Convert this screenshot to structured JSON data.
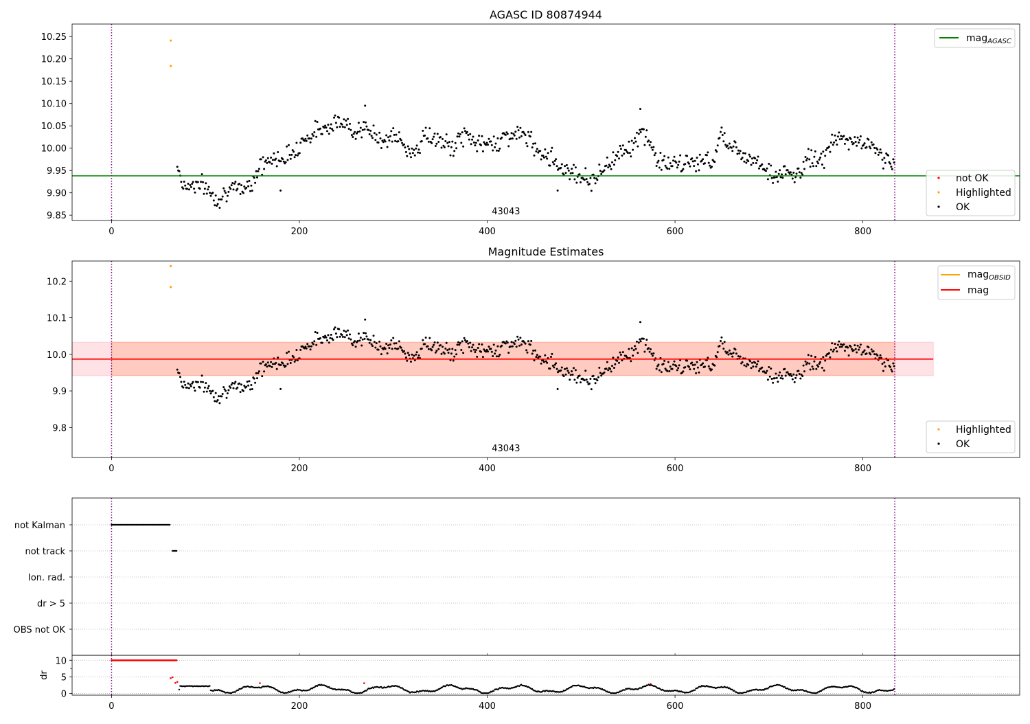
{
  "chart_data": [
    {
      "type": "scatter",
      "title": "AGASC ID 80874944",
      "annotation": "43043",
      "xlim": [
        -42,
        967
      ],
      "ylim": [
        9.838,
        10.278
      ],
      "xticks": [
        0,
        200,
        400,
        600,
        800
      ],
      "yticks": [
        9.85,
        9.9,
        9.95,
        10.0,
        10.05,
        10.1,
        10.15,
        10.2,
        10.25
      ],
      "ytick_labels": [
        "9.85",
        "9.90",
        "9.95",
        "10.00",
        "10.05",
        "10.10",
        "10.15",
        "10.20",
        "10.25"
      ],
      "vlines": [
        0,
        834
      ],
      "hline": {
        "y": 9.938,
        "color": "#008000"
      },
      "legend_lines": [
        {
          "base": "mag",
          "sub": "AGASC",
          "color": "#008000"
        }
      ],
      "legend_points": [
        {
          "label": "not OK",
          "color": "#ff0000"
        },
        {
          "label": "Highlighted",
          "color": "#ffa500"
        },
        {
          "label": "OK",
          "color": "#000000"
        }
      ],
      "highlighted": [
        {
          "x": 63,
          "y": 10.241
        },
        {
          "x": 63,
          "y": 10.184
        }
      ],
      "ok_series": {
        "x_start": 70,
        "x_end": 834,
        "step": 1.05,
        "knots": [
          [
            70,
            9.965
          ],
          [
            76,
            9.915
          ],
          [
            90,
            9.92
          ],
          [
            100,
            9.913
          ],
          [
            112,
            9.885
          ],
          [
            122,
            9.905
          ],
          [
            132,
            9.905
          ],
          [
            148,
            9.92
          ],
          [
            158,
            9.96
          ],
          [
            172,
            9.975
          ],
          [
            190,
            9.985
          ],
          [
            205,
            10.02
          ],
          [
            220,
            10.04
          ],
          [
            238,
            10.06
          ],
          [
            255,
            10.045
          ],
          [
            270,
            10.04
          ],
          [
            290,
            10.02
          ],
          [
            305,
            10.025
          ],
          [
            315,
            9.99
          ],
          [
            325,
            10.0
          ],
          [
            335,
            10.03
          ],
          [
            350,
            10.015
          ],
          [
            362,
            10.0
          ],
          [
            375,
            10.03
          ],
          [
            385,
            10.02
          ],
          [
            395,
            10.005
          ],
          [
            410,
            10.015
          ],
          [
            425,
            10.03
          ],
          [
            440,
            10.03
          ],
          [
            452,
            10.0
          ],
          [
            465,
            9.985
          ],
          [
            480,
            9.955
          ],
          [
            495,
            9.945
          ],
          [
            510,
            9.925
          ],
          [
            525,
            9.955
          ],
          [
            545,
            10.0
          ],
          [
            555,
            10.005
          ],
          [
            565,
            10.035
          ],
          [
            572,
            10.02
          ],
          [
            580,
            9.975
          ],
          [
            600,
            9.96
          ],
          [
            620,
            9.97
          ],
          [
            640,
            9.97
          ],
          [
            650,
            10.04
          ],
          [
            660,
            10.0
          ],
          [
            675,
            9.985
          ],
          [
            690,
            9.97
          ],
          [
            705,
            9.935
          ],
          [
            720,
            9.945
          ],
          [
            730,
            9.935
          ],
          [
            742,
            9.98
          ],
          [
            755,
            9.97
          ],
          [
            770,
            10.02
          ],
          [
            790,
            10.015
          ],
          [
            805,
            10.01
          ],
          [
            820,
            9.985
          ],
          [
            834,
            9.96
          ]
        ],
        "noise": 0.018,
        "spikes": [
          {
            "x": 270,
            "y": 10.095
          },
          {
            "x": 563,
            "y": 10.088
          },
          {
            "x": 180,
            "y": 9.905
          },
          {
            "x": 475,
            "y": 9.905
          }
        ]
      }
    },
    {
      "type": "scatter",
      "title": "Magnitude Estimates",
      "annotation": "43043",
      "xlim": [
        -42,
        967
      ],
      "ylim": [
        9.718,
        10.255
      ],
      "xticks": [
        0,
        200,
        400,
        600,
        800
      ],
      "yticks": [
        9.8,
        9.9,
        10.0,
        10.1,
        10.2
      ],
      "ytick_labels": [
        "9.8",
        "9.9",
        "10.0",
        "10.1",
        "10.2"
      ],
      "vlines": [
        0,
        834
      ],
      "bands": [
        {
          "x0": -42,
          "x1": 875,
          "y0": 9.942,
          "y1": 10.033,
          "color": "#ffb6c1",
          "opacity": 0.4
        },
        {
          "x0": 0,
          "x1": 834,
          "y0": 9.942,
          "y1": 10.033,
          "color": "#ffa07a",
          "opacity": 0.35
        }
      ],
      "hline": {
        "y": 9.987,
        "x0": -42,
        "x1": 875,
        "color": "#ff0000"
      },
      "legend_lines": [
        {
          "base": "mag",
          "sub": "OBSID",
          "color": "#ffa500"
        },
        {
          "base": "mag",
          "sub": "",
          "color": "#ff0000"
        }
      ],
      "legend_points": [
        {
          "label": "Highlighted",
          "color": "#ffa500"
        },
        {
          "label": "OK",
          "color": "#000000"
        }
      ]
    },
    {
      "type": "scatter",
      "title": "",
      "xlim": [
        -42,
        967
      ],
      "categories": [
        "not Kalman",
        "not track",
        "Ion. rad.",
        "dr > 5",
        "OBS not OK"
      ],
      "flags": [
        {
          "category": "not Kalman",
          "x0": 0,
          "x1": 62,
          "step": 1.05
        },
        {
          "category": "not track",
          "x0": 65,
          "x1": 70,
          "step": 1.05
        }
      ],
      "vlines": [
        0,
        834
      ]
    },
    {
      "type": "scatter",
      "title": "",
      "ylabel": "dr",
      "xlim": [
        -42,
        967
      ],
      "ylim": [
        -0.5,
        11.5
      ],
      "xticks": [
        0,
        200,
        400,
        600,
        800
      ],
      "yticks": [
        0,
        5,
        10
      ],
      "ytick_labels": [
        "0",
        "5",
        "10"
      ],
      "vlines": [
        0,
        834
      ],
      "red_saturated": {
        "x0": 0,
        "x1": 70,
        "y": 10,
        "step": 1.05
      },
      "red_points": [
        {
          "x": 63,
          "y": 4.6
        },
        {
          "x": 65,
          "y": 4.9
        },
        {
          "x": 68,
          "y": 3.2
        },
        {
          "x": 70,
          "y": 3.5
        },
        {
          "x": 158,
          "y": 3.1
        },
        {
          "x": 269,
          "y": 3.1
        },
        {
          "x": 574,
          "y": 2.9
        }
      ],
      "black_series": {
        "x_start": 72,
        "x_end": 834,
        "step": 1.05
      }
    }
  ]
}
